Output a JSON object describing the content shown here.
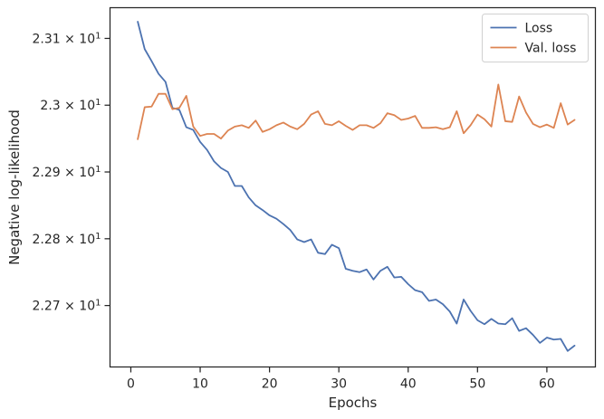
{
  "chart_data": {
    "type": "line",
    "title": "",
    "xlabel": "Epochs",
    "ylabel": "Negative log-likelihood",
    "xlim": [
      -3,
      67
    ],
    "ylim": [
      22.608,
      23.146
    ],
    "grid": false,
    "legend_position": "top-right",
    "x_ticks": [
      0,
      10,
      20,
      30,
      40,
      50,
      60
    ],
    "x_tick_labels": [
      "0",
      "10",
      "20",
      "30",
      "40",
      "50",
      "60"
    ],
    "y_ticks": [
      22.7,
      22.8,
      22.9,
      23.0,
      23.1
    ],
    "y_tick_mantissas": [
      "2.27",
      "2.28",
      "2.29",
      "2.3",
      "2.31"
    ],
    "y_tick_multiplier": "× 10",
    "y_tick_exponent": "1",
    "colors": {
      "loss": "#4c72b0",
      "val_loss": "#dd8452",
      "axes": "#262626"
    },
    "x": [
      1,
      2,
      3,
      4,
      5,
      6,
      7,
      8,
      9,
      10,
      11,
      12,
      13,
      14,
      15,
      16,
      17,
      18,
      19,
      20,
      21,
      22,
      23,
      24,
      25,
      26,
      27,
      28,
      29,
      30,
      31,
      32,
      33,
      34,
      35,
      36,
      37,
      38,
      39,
      40,
      41,
      42,
      43,
      44,
      45,
      46,
      47,
      48,
      49,
      50,
      51,
      52,
      53,
      54,
      55,
      56,
      57,
      58,
      59,
      60,
      61,
      62,
      63,
      64
    ],
    "series": [
      {
        "name": "Loss",
        "values": [
          23.125,
          23.084,
          23.066,
          23.047,
          23.035,
          22.996,
          22.993,
          22.967,
          22.963,
          22.945,
          22.933,
          22.916,
          22.906,
          22.9,
          22.879,
          22.879,
          22.862,
          22.85,
          22.843,
          22.835,
          22.83,
          22.822,
          22.813,
          22.799,
          22.795,
          22.799,
          22.779,
          22.777,
          22.791,
          22.786,
          22.755,
          22.752,
          22.75,
          22.754,
          22.739,
          22.752,
          22.758,
          22.742,
          22.743,
          22.732,
          22.723,
          22.72,
          22.707,
          22.709,
          22.702,
          22.691,
          22.673,
          22.709,
          22.692,
          22.678,
          22.672,
          22.68,
          22.673,
          22.672,
          22.681,
          22.662,
          22.666,
          22.656,
          22.644,
          22.652,
          22.649,
          22.65,
          22.632,
          22.64
        ]
      },
      {
        "name": "Val. loss",
        "values": [
          22.949,
          22.997,
          22.998,
          23.017,
          23.017,
          22.994,
          22.996,
          23.014,
          22.968,
          22.954,
          22.957,
          22.957,
          22.95,
          22.962,
          22.968,
          22.97,
          22.966,
          22.977,
          22.96,
          22.964,
          22.97,
          22.974,
          22.968,
          22.964,
          22.972,
          22.986,
          22.991,
          22.972,
          22.97,
          22.976,
          22.969,
          22.963,
          22.97,
          22.97,
          22.966,
          22.973,
          22.988,
          22.985,
          22.978,
          22.98,
          22.984,
          22.966,
          22.966,
          22.967,
          22.964,
          22.967,
          22.991,
          22.958,
          22.97,
          22.986,
          22.979,
          22.968,
          23.031,
          22.976,
          22.975,
          23.013,
          22.989,
          22.972,
          22.967,
          22.971,
          22.966,
          23.003,
          22.971,
          22.978
        ]
      }
    ]
  }
}
